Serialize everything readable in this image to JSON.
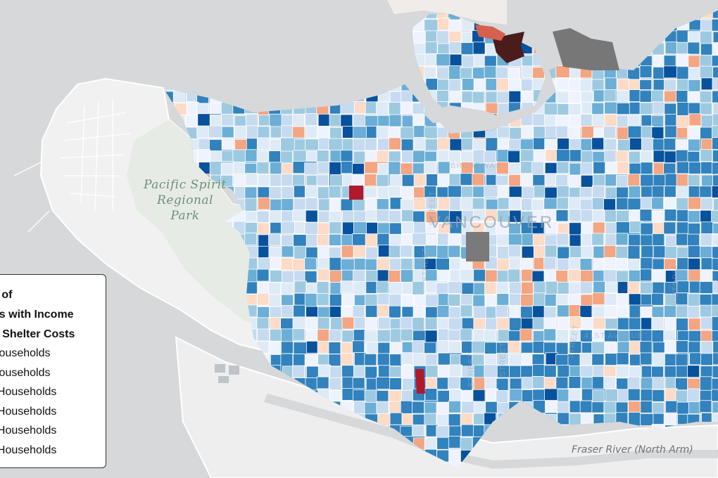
{
  "colors": {
    "water": "#d6d8da",
    "land": "#f1f1f1",
    "park": "#e9ece9",
    "scale": [
      "#08519c",
      "#3182bd",
      "#6baed6",
      "#9ecae1",
      "#c6dbef",
      "#eff3ff",
      "#fddbc7",
      "#f4a582",
      "#d6604d",
      "#b2182b",
      "#4a1c1c"
    ],
    "no_data": "#7a7a7a"
  },
  "labels": {
    "park": "Pacific Spirit\nRegional\nPark",
    "city": "VANCOUVER",
    "river": "Fraser River (North Arm)",
    "streets": [
      "STREET",
      "STREET",
      "BROADWAY",
      "STREET",
      "STREET",
      "VICTORIA",
      "STREET",
      "41ST AVENUE"
    ]
  },
  "legend": {
    "title": "e of\nds with Income\nn Shelter Costs",
    "items": [
      {
        "label": "Households",
        "color": "#08519c"
      },
      {
        "label": "Households",
        "color": "#6baed6"
      },
      {
        "label": "f Households",
        "color": "#c6dbef"
      },
      {
        "label": "f Households",
        "color": "#fddbc7"
      },
      {
        "label": "f Households",
        "color": "#f4a582"
      },
      {
        "label": "f Households",
        "color": "#b2182b"
      }
    ]
  }
}
